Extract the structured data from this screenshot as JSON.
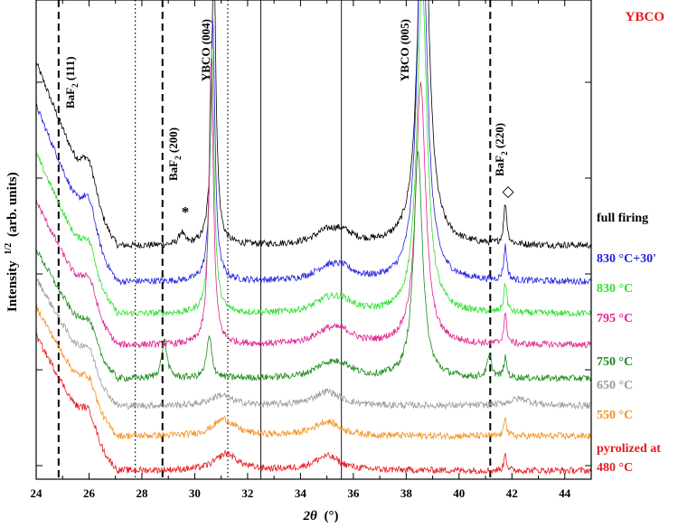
{
  "chart_data": {
    "type": "line",
    "title": "YBCO",
    "title_color": "#e8191e",
    "xlabel_symbol": "2θ",
    "xlabel_unit": "(°)",
    "ylabel_main": "Intensity",
    "ylabel_sup": "1/2",
    "ylabel_unit": "(arb. units)",
    "xlim": [
      24,
      45
    ],
    "ylim": [
      0,
      100
    ],
    "xticks": [
      24,
      26,
      28,
      30,
      32,
      34,
      36,
      38,
      40,
      42,
      44
    ],
    "grid": false,
    "reference_lines": {
      "dashed": [
        24.85,
        28.78,
        41.18
      ],
      "dotted": [
        27.75,
        31.25
      ],
      "solid": [
        32.5,
        35.55
      ]
    },
    "peak_labels": [
      {
        "base": "BaF",
        "sub": "2",
        "rest": " (111)",
        "x": 24.85
      },
      {
        "base": "BaF",
        "sub": "2",
        "rest": " (200)",
        "x": 28.78
      },
      {
        "base": "YBCO (004)",
        "sub": "",
        "rest": "",
        "x": 30.6
      },
      {
        "base": "YBCO (005)",
        "sub": "",
        "rest": "",
        "x": 38.55
      },
      {
        "base": "BaF",
        "sub": "2",
        "rest": " (220)",
        "x": 41.18
      }
    ],
    "markers": [
      {
        "symbol": "*",
        "x": 29.6
      },
      {
        "symbol": "◇",
        "x": 41.75
      }
    ],
    "series": [
      {
        "name": "full firing",
        "color": "#000000",
        "baseline": 48.7,
        "lowstart": 87,
        "shoulder": 6,
        "peaks": [
          [
            29.5,
            2.5,
            0.12
          ],
          [
            30.72,
            60,
            0.1
          ],
          [
            38.65,
            90,
            0.22
          ],
          [
            41.75,
            8.5,
            0.07
          ],
          [
            35.0,
            2.5,
            0.6
          ],
          [
            35.6,
            2,
            0.5
          ]
        ]
      },
      {
        "name": "830 °C+30'",
        "color": "#1f1fe0",
        "baseline": 41.2,
        "lowstart": 78,
        "shoulder": 6,
        "peaks": [
          [
            30.68,
            55,
            0.1
          ],
          [
            38.6,
            80,
            0.22
          ],
          [
            41.75,
            7,
            0.07
          ],
          [
            35.0,
            2.5,
            0.6
          ],
          [
            35.6,
            2,
            0.5
          ]
        ]
      },
      {
        "name": "830 °C",
        "color": "#2ee02e",
        "baseline": 34.5,
        "lowstart": 68,
        "shoulder": 5,
        "peaks": [
          [
            30.65,
            55,
            0.1
          ],
          [
            38.6,
            70,
            0.22
          ],
          [
            41.75,
            6,
            0.07
          ],
          [
            35.0,
            2.5,
            0.6
          ],
          [
            35.6,
            2,
            0.5
          ]
        ]
      },
      {
        "name": "795 °C",
        "color": "#e0208e",
        "baseline": 28,
        "lowstart": 58,
        "shoulder": 5,
        "peaks": [
          [
            30.62,
            60,
            0.1
          ],
          [
            38.55,
            55,
            0.22
          ],
          [
            41.75,
            6,
            0.07
          ],
          [
            35.0,
            2.5,
            0.6
          ],
          [
            35.6,
            2,
            0.5
          ]
        ]
      },
      {
        "name": "750 °C",
        "color": "#1a8a1a",
        "baseline": 21,
        "lowstart": 48,
        "shoulder": 4,
        "peaks": [
          [
            28.85,
            8,
            0.12
          ],
          [
            30.55,
            8.5,
            0.12
          ],
          [
            38.45,
            47,
            0.2
          ],
          [
            41.15,
            4.5,
            0.1
          ],
          [
            41.75,
            4,
            0.07
          ],
          [
            35.0,
            2.5,
            0.6
          ],
          [
            35.6,
            2,
            0.5
          ]
        ]
      },
      {
        "name": "650 °C",
        "color": "#9a9a9a",
        "baseline": 15.3,
        "lowstart": 42,
        "shoulder": 4,
        "peaks": [
          [
            31.0,
            2.2,
            0.5
          ],
          [
            35.0,
            3,
            0.6
          ],
          [
            42.3,
            1.5,
            0.5
          ]
        ]
      },
      {
        "name": "550 °C",
        "color": "#f5901e",
        "baseline": 9,
        "lowstart": 36,
        "shoulder": 4,
        "peaks": [
          [
            31.1,
            3.5,
            0.5
          ],
          [
            35.0,
            3,
            0.6
          ],
          [
            41.75,
            4.5,
            0.05
          ]
        ]
      },
      {
        "name": "pyrolized at 480 °C",
        "label_lines": [
          "pyrolized at",
          "480 °C"
        ],
        "color": "#e8191e",
        "baseline": 1.8,
        "lowstart": 30,
        "shoulder": 4,
        "peaks": [
          [
            31.2,
            3.5,
            0.5
          ],
          [
            35.0,
            3,
            0.6
          ],
          [
            41.75,
            4,
            0.05
          ]
        ]
      }
    ]
  }
}
